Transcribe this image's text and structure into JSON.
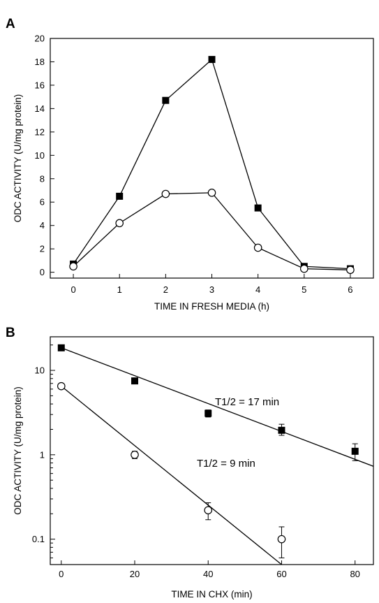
{
  "chart_data": [
    {
      "panel": "A",
      "type": "line",
      "xlabel": "TIME IN FRESH MEDIA (h)",
      "ylabel": "ODC ACTIVITY (U/mg protein)",
      "xlim": [
        -0.5,
        6.5
      ],
      "ylim": [
        -0.5,
        20
      ],
      "xticks": [
        0,
        1,
        2,
        3,
        4,
        5,
        6
      ],
      "yticks": [
        0,
        2,
        4,
        6,
        8,
        10,
        12,
        14,
        16,
        18,
        20
      ],
      "grid": false,
      "x": [
        0,
        1,
        2,
        3,
        4,
        5,
        6
      ],
      "series": [
        {
          "marker": "filled-square",
          "color": "#000000",
          "values": [
            0.7,
            6.5,
            14.7,
            18.2,
            5.5,
            0.5,
            0.3
          ]
        },
        {
          "marker": "open-circle",
          "color": "#000000",
          "values": [
            0.5,
            4.2,
            6.7,
            6.8,
            2.1,
            0.3,
            0.2
          ]
        }
      ]
    },
    {
      "panel": "B",
      "type": "scatter",
      "xlabel": "TIME IN CHX (min)",
      "ylabel": "ODC ACTIVITY (U/mg protein)",
      "yscale": "log",
      "xlim": [
        -3,
        85
      ],
      "ylim": [
        0.05,
        25
      ],
      "xticks": [
        0,
        20,
        40,
        60,
        80
      ],
      "yticks": [
        0.1,
        1,
        10
      ],
      "ytick_labels": [
        "0.1",
        "1",
        "10"
      ],
      "grid": false,
      "series": [
        {
          "marker": "filled-square",
          "color": "#000000",
          "x": [
            0,
            20,
            40,
            60,
            80
          ],
          "values": [
            18.5,
            7.5,
            3.1,
            1.95,
            1.1
          ],
          "err_low": [
            18.0,
            7.3,
            2.8,
            1.7,
            0.85
          ],
          "err_high": [
            19.0,
            7.7,
            3.4,
            2.3,
            1.35
          ],
          "fit": {
            "x": [
              0,
              85
            ],
            "y": [
              18.5,
              0.73
            ]
          },
          "annotation": "T1/2 = 17 min"
        },
        {
          "marker": "open-circle",
          "color": "#000000",
          "x": [
            0,
            20,
            40,
            60
          ],
          "values": [
            6.5,
            1.0,
            0.22,
            0.1
          ],
          "err_low": [
            6.3,
            0.9,
            0.17,
            0.06
          ],
          "err_high": [
            6.7,
            1.1,
            0.27,
            0.14
          ],
          "fit": {
            "x": [
              0,
              60
            ],
            "y": [
              6.5,
              0.05
            ]
          },
          "annotation": "T1/2 = 9 min"
        }
      ]
    }
  ],
  "panel_letters": [
    "A",
    "B"
  ]
}
